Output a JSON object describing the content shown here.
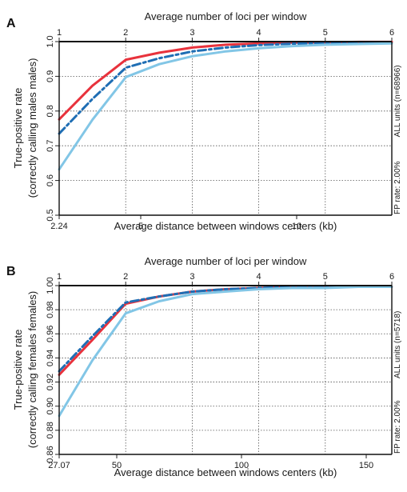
{
  "chart_data": [
    {
      "panel": "A",
      "type": "line",
      "top_axis_label": "Average number of loci per window",
      "top_ticks": [
        "1",
        "2",
        "3",
        "4",
        "5",
        "6"
      ],
      "xlabel": "Average distance between windows centers (kb)",
      "x_ticks": [
        "2.24",
        "5",
        "10"
      ],
      "ylabel": "True-positive rate",
      "ylabel2": "(correctly calling males males)",
      "y_ticks": [
        "0.5",
        "0.6",
        "0.7",
        "0.8",
        "0.9",
        "1.0"
      ],
      "ylim": [
        0.5,
        1.0
      ],
      "xlim": [
        2.24,
        13.4
      ],
      "right_labels": [
        "FP rate: 2.00%",
        "ALL units (n=68966)"
      ],
      "grid": true,
      "series": [
        {
          "color": "#e8323c",
          "style": "solid",
          "x": [
            2.24,
            3.36,
            4.48,
            5.6,
            6.72,
            7.84,
            8.96,
            10.08,
            11.2,
            12.32,
            13.4
          ],
          "y": [
            0.776,
            0.873,
            0.948,
            0.968,
            0.983,
            0.991,
            0.995,
            0.997,
            0.998,
            0.999,
            0.999
          ]
        },
        {
          "color": "#1f6eb4",
          "style": "dashdot",
          "x": [
            2.24,
            3.36,
            4.48,
            5.6,
            6.72,
            7.84,
            8.96,
            10.08,
            11.2,
            12.32,
            13.4
          ],
          "y": [
            0.735,
            0.835,
            0.925,
            0.952,
            0.972,
            0.983,
            0.99,
            0.994,
            0.996,
            0.997,
            0.998
          ]
        },
        {
          "color": "#82c6e6",
          "style": "solid",
          "x": [
            2.24,
            3.36,
            4.48,
            5.6,
            6.72,
            7.84,
            8.96,
            10.08,
            11.2,
            12.32,
            13.4
          ],
          "y": [
            0.632,
            0.775,
            0.898,
            0.935,
            0.958,
            0.972,
            0.981,
            0.987,
            0.991,
            0.993,
            0.995
          ]
        }
      ]
    },
    {
      "panel": "B",
      "type": "line",
      "top_axis_label": "Average number of loci per window",
      "top_ticks": [
        "1",
        "2",
        "3",
        "4",
        "5",
        "6"
      ],
      "xlabel": "Average distance between windows centers (kb)",
      "x_ticks": [
        "27.07",
        "50",
        "100",
        "150"
      ],
      "ylabel": "True-positive rate",
      "ylabel2": "(correctly calling females females)",
      "y_ticks": [
        "0.86",
        "0.88",
        "0.90",
        "0.92",
        "0.94",
        "0.96",
        "0.98",
        "1.00"
      ],
      "ylim": [
        0.86,
        1.0
      ],
      "xlim": [
        27.07,
        162.4
      ],
      "right_labels": [
        "FP rate: 2.00%",
        "ALL units (n=5718)"
      ],
      "grid": true,
      "series": [
        {
          "color": "#e8323c",
          "style": "solid",
          "x": [
            27.07,
            40.6,
            54.1,
            67.7,
            81.2,
            94.7,
            108.3,
            121.8,
            135.3,
            148.9,
            162.4
          ],
          "y": [
            0.926,
            0.955,
            0.985,
            0.991,
            0.995,
            0.997,
            0.998,
            0.999,
            0.999,
            0.999,
            0.999
          ]
        },
        {
          "color": "#1f6eb4",
          "style": "dashdot",
          "x": [
            27.07,
            40.6,
            54.1,
            67.7,
            81.2,
            94.7,
            108.3,
            121.8,
            135.3,
            148.9,
            162.4
          ],
          "y": [
            0.929,
            0.958,
            0.986,
            0.991,
            0.995,
            0.997,
            0.998,
            0.999,
            0.999,
            0.999,
            0.999
          ]
        },
        {
          "color": "#82c6e6",
          "style": "solid",
          "x": [
            27.07,
            40.6,
            54.1,
            67.7,
            81.2,
            94.7,
            108.3,
            121.8,
            135.3,
            148.9,
            162.4
          ],
          "y": [
            0.892,
            0.938,
            0.977,
            0.987,
            0.993,
            0.995,
            0.997,
            0.998,
            0.998,
            0.999,
            0.999
          ]
        }
      ]
    }
  ]
}
